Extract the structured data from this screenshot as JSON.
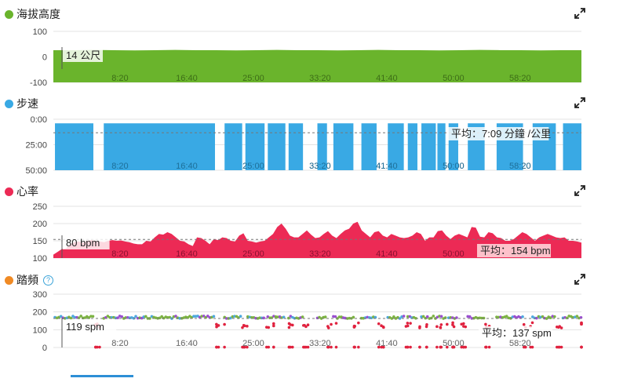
{
  "chart_data": [
    {
      "type": "area",
      "title": "海拔高度",
      "color": "#6ab42c",
      "yticks": [
        "100",
        "0",
        "-100"
      ],
      "ylim": [
        -100,
        100
      ],
      "x_ticks": [
        "8:20",
        "16:40",
        "25:00",
        "33:20",
        "41:40",
        "50:00",
        "58:20"
      ],
      "x_range_min": [
        0,
        66
      ],
      "series": [
        {
          "values": [
            14,
            14,
            15,
            14,
            13,
            14,
            15,
            14,
            14,
            13,
            14,
            15,
            14,
            14,
            13,
            14,
            15,
            14,
            14,
            13,
            14,
            15,
            14,
            14,
            13,
            14,
            14
          ]
        }
      ],
      "tooltip": "14 公尺"
    },
    {
      "type": "area",
      "title": "步速",
      "color": "#39a9e4",
      "yticks": [
        "0:00",
        "25:00",
        "50:00"
      ],
      "ylim_inverted": [
        0,
        50
      ],
      "x_ticks": [
        "8:20",
        "16:40",
        "25:00",
        "33:20",
        "41:40",
        "50:00",
        "58:20"
      ],
      "x_range_min": [
        0,
        66
      ],
      "segments_min": [
        [
          0.2,
          5.0
        ],
        [
          6.3,
          20.2
        ],
        [
          21.4,
          23.6
        ],
        [
          24.0,
          26.4
        ],
        [
          26.8,
          29.0
        ],
        [
          29.4,
          31.2
        ],
        [
          33.0,
          34.2
        ],
        [
          35.0,
          37.5
        ],
        [
          38.5,
          40.4
        ],
        [
          41.8,
          43.8
        ],
        [
          44.3,
          45.5
        ],
        [
          46.0,
          47.8
        ],
        [
          48.0,
          49.0
        ],
        [
          49.4,
          50.6
        ],
        [
          51.8,
          53.9
        ],
        [
          55.4,
          58.7
        ],
        [
          59.9,
          62.8
        ],
        [
          63.7,
          66.0
        ]
      ],
      "segment_pace": 7.1,
      "average_label": "平均：7:09 分鐘 /公里",
      "average_value": 7.15
    },
    {
      "type": "area",
      "title": "心率",
      "color": "#ec2a55",
      "yticks": [
        "250",
        "200",
        "150",
        "100"
      ],
      "ylim": [
        100,
        250
      ],
      "x_ticks": [
        "8:20",
        "16:40",
        "25:00",
        "33:20",
        "41:40",
        "50:00",
        "58:20"
      ],
      "x_range_min": [
        0,
        66
      ],
      "series": [
        {
          "values": [
            110,
            118,
            126,
            128,
            140,
            146,
            148,
            145,
            150,
            152,
            150,
            148,
            146,
            150,
            152,
            150,
            151,
            148,
            146,
            142,
            140,
            140,
            150,
            148,
            160,
            170,
            168,
            175,
            170,
            160,
            150,
            148,
            140,
            135,
            160,
            158,
            150,
            140,
            155,
            152,
            160,
            158,
            150,
            148,
            165,
            172,
            150,
            148,
            145,
            148,
            150,
            160,
            170,
            190,
            200,
            185,
            165,
            160,
            160,
            170,
            180,
            168,
            158,
            160,
            170,
            178,
            165,
            158,
            170,
            180,
            185,
            200,
            205,
            180,
            170,
            160,
            175,
            178,
            165,
            160,
            170,
            165,
            160,
            158,
            160,
            165,
            175,
            170,
            150,
            160,
            160,
            178,
            180,
            165,
            155,
            165,
            170,
            165,
            160,
            190,
            188,
            162,
            160,
            175,
            172,
            160,
            158,
            150,
            150,
            155,
            165,
            175,
            170,
            160,
            150,
            160,
            165,
            170,
            165,
            160,
            158,
            160,
            150,
            150,
            148,
            145
          ]
        }
      ],
      "tooltip": "80 bpm",
      "average_label": "平均：154 bpm",
      "average_value": 154
    },
    {
      "type": "scatter",
      "title": "踏頻",
      "color": "#f08a24",
      "yticks": [
        "300",
        "200",
        "100",
        "0"
      ],
      "ylim": [
        0,
        300
      ],
      "x_ticks": [
        "8:20",
        "16:40",
        "25:00",
        "33:20",
        "41:40",
        "50:00",
        "58:20"
      ],
      "x_range_min": [
        0,
        66
      ],
      "high_segments_min": [
        [
          0.2,
          5.0
        ],
        [
          6.3,
          20.2
        ],
        [
          21.4,
          23.6
        ],
        [
          24.3,
          26.4
        ],
        [
          26.8,
          29.0
        ],
        [
          29.4,
          31.2
        ],
        [
          33.0,
          34.2
        ],
        [
          35.0,
          37.5
        ],
        [
          38.5,
          40.4
        ],
        [
          41.8,
          43.8
        ],
        [
          44.3,
          45.5
        ],
        [
          46.0,
          47.8
        ],
        [
          48.0,
          49.0
        ],
        [
          49.4,
          50.6
        ],
        [
          51.8,
          53.9
        ],
        [
          55.4,
          58.7
        ],
        [
          59.9,
          62.8
        ],
        [
          63.7,
          66.0
        ]
      ],
      "high_cadence": 170,
      "average_label": "平均：137 spm",
      "average_value": 137,
      "tooltip": "119 spm"
    }
  ]
}
